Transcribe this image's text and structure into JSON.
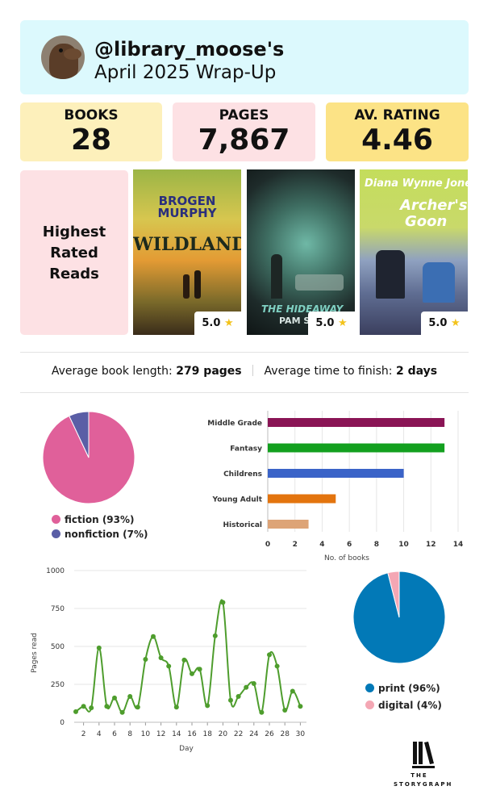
{
  "header": {
    "username": "@library_moose's",
    "subtitle": "April 2025 Wrap-Up"
  },
  "stats": {
    "books_label": "BOOKS",
    "books_value": "28",
    "pages_label": "PAGES",
    "pages_value": "7,867",
    "rating_label": "AV. RATING",
    "rating_value": "4.46"
  },
  "highest_rated": {
    "label_lines": [
      "Highest",
      "Rated",
      "Reads"
    ],
    "books": [
      {
        "author_line1": "BROGEN",
        "author_line2": "MURPHY",
        "title": "WILDLANDS",
        "rating": "5.0",
        "star": "★"
      },
      {
        "title": "THE HIDEAWAY",
        "author": "PAM S",
        "rating": "5.0",
        "star": "★"
      },
      {
        "author": "Diana Wynne Jones",
        "title_line1": "Archer's",
        "title_line2": "Goon",
        "rating": "5.0",
        "star": "★"
      }
    ]
  },
  "averages": {
    "length_label": "Average book length:",
    "length_value": "279 pages",
    "time_label": "Average time to finish:",
    "time_value": "2 days"
  },
  "colors": {
    "fiction": "#e0609a",
    "nonfiction": "#5a5ea6",
    "print": "#0279b7",
    "digital": "#f4a7b4",
    "line": "#4e9d2d",
    "genre_middle_grade": "#8a1455",
    "genre_fantasy": "#13a01f",
    "genre_childrens": "#3a63c8",
    "genre_young_adult": "#e3740e",
    "genre_historical": "#dda477"
  },
  "chart_data": [
    {
      "type": "pie",
      "labels": [
        "fiction",
        "nonfiction"
      ],
      "values": [
        93,
        7
      ],
      "legend": [
        "fiction (93%)",
        "nonfiction (7%)"
      ],
      "legend_position": "bottom"
    },
    {
      "type": "bar",
      "orientation": "horizontal",
      "categories": [
        "Middle Grade",
        "Fantasy",
        "Childrens",
        "Young Adult",
        "Historical"
      ],
      "values": [
        13,
        13,
        10,
        5,
        3
      ],
      "xlabel": "No. of books",
      "xlim": [
        0,
        14
      ],
      "xticks": [
        "0",
        "2",
        "4",
        "6",
        "8",
        "10",
        "12",
        "14"
      ],
      "grid": true
    },
    {
      "type": "line",
      "x": [
        1,
        2,
        3,
        4,
        5,
        6,
        7,
        8,
        9,
        10,
        11,
        12,
        13,
        14,
        15,
        16,
        17,
        18,
        19,
        20,
        21,
        22,
        23,
        24,
        25,
        26,
        27,
        28,
        29,
        30
      ],
      "values": [
        70,
        105,
        95,
        490,
        105,
        160,
        65,
        170,
        100,
        415,
        565,
        425,
        370,
        100,
        410,
        320,
        350,
        110,
        570,
        790,
        145,
        170,
        230,
        255,
        65,
        445,
        370,
        80,
        205,
        105
      ],
      "xlabel": "Day",
      "ylabel": "Pages read",
      "ylim": [
        0,
        1000
      ],
      "yticks": [
        "0",
        "250",
        "500",
        "750",
        "1000"
      ],
      "xticks": [
        "2",
        "4",
        "6",
        "8",
        "10",
        "12",
        "14",
        "16",
        "18",
        "20",
        "22",
        "24",
        "26",
        "28",
        "30"
      ],
      "grid": true
    },
    {
      "type": "pie",
      "labels": [
        "print",
        "digital"
      ],
      "values": [
        96,
        4
      ],
      "legend": [
        "print (96%)",
        "digital (4%)"
      ],
      "legend_position": "bottom"
    }
  ],
  "logo": {
    "line1": "THE",
    "line2": "STORYGRAPH"
  }
}
